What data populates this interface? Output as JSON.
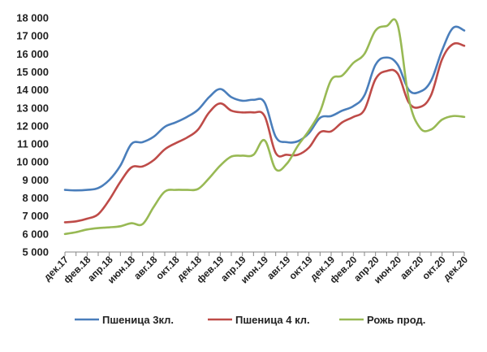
{
  "chart_data": {
    "type": "line",
    "title": "",
    "xlabel": "",
    "ylabel": "",
    "ylim": [
      5000,
      18000
    ],
    "y_ticks": [
      "5 000",
      "6 000",
      "7 000",
      "8 000",
      "9 000",
      "10 000",
      "11 000",
      "12 000",
      "13 000",
      "14 000",
      "15 000",
      "16 000",
      "17 000",
      "18 000"
    ],
    "categories": [
      "дек.17",
      "янв.18",
      "фев.18",
      "мар.18",
      "апр.18",
      "май.18",
      "июн.18",
      "июл.18",
      "авг.18",
      "сен.18",
      "окт.18",
      "ноя.18",
      "дек.18",
      "янв.19",
      "фев.19",
      "мар.19",
      "апр.19",
      "май.19",
      "июн.19",
      "июл.19",
      "авг.19",
      "сен.19",
      "окт.19",
      "ноя.19",
      "дек.19",
      "янв.20",
      "фев.20",
      "мар.20",
      "апр.20",
      "май.20",
      "июн.20",
      "июл.20",
      "авг.20",
      "сен.20",
      "окт.20",
      "ноя.20",
      "дек.20"
    ],
    "x_tick_labels": [
      "дек.17",
      "фев.18",
      "апр.18",
      "июн.18",
      "авг.18",
      "окт.18",
      "дек.18",
      "фев.19",
      "апр.19",
      "июн.19",
      "авг.19",
      "окт.19",
      "дек.19",
      "фев.20",
      "апр.20",
      "июн.20",
      "авг.20",
      "окт.20",
      "дек.20"
    ],
    "series": [
      {
        "name": "Пшеница 3кл.",
        "color": "#4A7EBB",
        "values": [
          8450,
          8420,
          8450,
          8550,
          9000,
          9800,
          11000,
          11100,
          11400,
          11950,
          12200,
          12500,
          12900,
          13600,
          14050,
          13600,
          13400,
          13450,
          13300,
          11400,
          11100,
          11150,
          11600,
          12450,
          12550,
          12850,
          13100,
          13700,
          15400,
          15800,
          15400,
          14000,
          13900,
          14500,
          16200,
          17450,
          17300
        ]
      },
      {
        "name": "Пшеница 4 кл.",
        "color": "#BE4B48",
        "values": [
          6650,
          6700,
          6850,
          7100,
          7900,
          8900,
          9700,
          9750,
          10100,
          10700,
          11050,
          11350,
          11800,
          12750,
          13250,
          12850,
          12750,
          12750,
          12550,
          10500,
          10400,
          10400,
          10800,
          11650,
          11700,
          12200,
          12500,
          12900,
          14600,
          15050,
          14900,
          13300,
          13050,
          13700,
          15700,
          16550,
          16450
        ]
      },
      {
        "name": "Рожь прод.",
        "color": "#98B954",
        "values": [
          6000,
          6100,
          6250,
          6330,
          6370,
          6430,
          6600,
          6550,
          7500,
          8350,
          8450,
          8450,
          8500,
          9100,
          9800,
          10300,
          10350,
          10400,
          11200,
          9600,
          9900,
          10900,
          11750,
          12800,
          14550,
          14800,
          15500,
          16000,
          17300,
          17550,
          17600,
          13500,
          11900,
          11800,
          12350,
          12550,
          12500
        ]
      }
    ],
    "grid": false,
    "legend_position": "bottom"
  }
}
